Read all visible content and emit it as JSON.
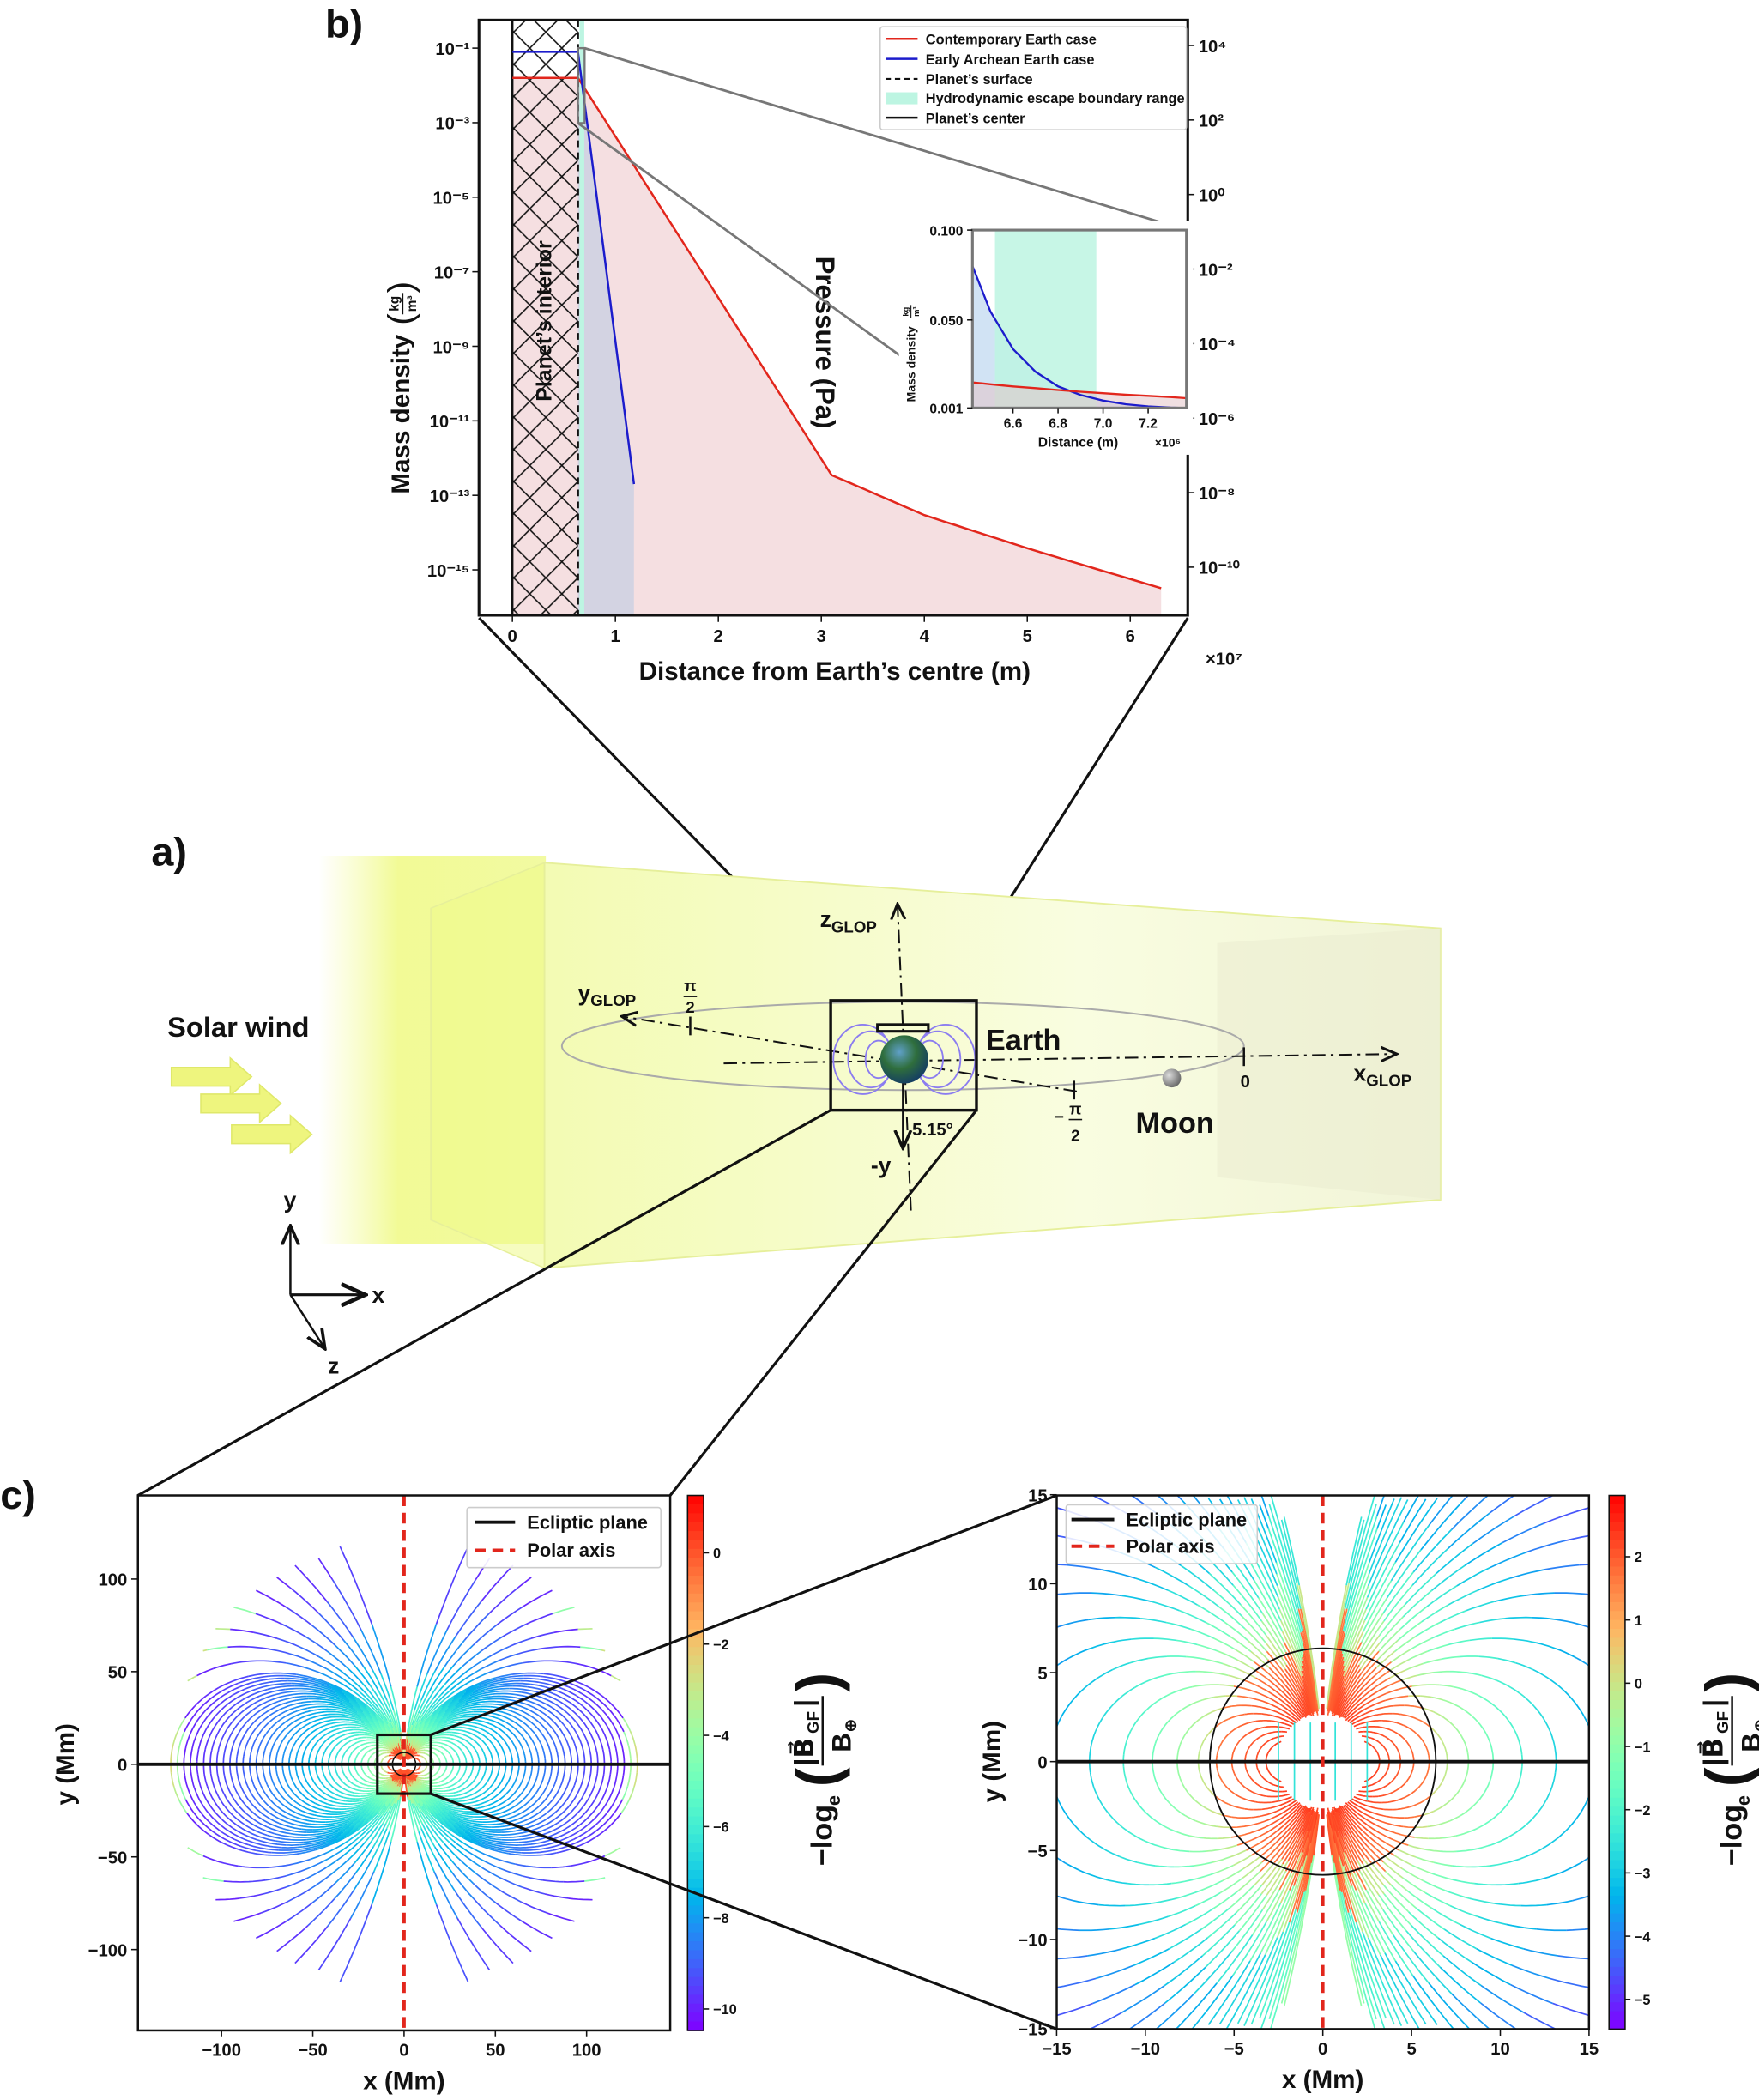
{
  "panel_labels": {
    "a": "a)",
    "b": "b)",
    "c": "c)"
  },
  "colors": {
    "contemporary": "#e2261c",
    "archean": "#1c1ccc",
    "hydro_band": "#bdf5e2",
    "red_fill": "#f5dfe1",
    "blue_fill": "#cfd2e2",
    "polar_axis": "#e2261c",
    "slab_yellow": "#eef98a"
  },
  "chart_data": [
    {
      "panel": "b",
      "type": "line",
      "xlabel": "Distance from Earth’s centre (m)",
      "x_multiplier": "×10⁷",
      "xlim": [
        -0.32,
        6.56
      ],
      "xticks": [
        0,
        1,
        2,
        3,
        4,
        5,
        6
      ],
      "xtick_labels": [
        "0",
        "1",
        "2",
        "3",
        "4",
        "5",
        "6"
      ],
      "ylabel": "Mass density",
      "ylabel_unit_num": "kg",
      "ylabel_unit_den": "m³",
      "yscale": "log",
      "ylim": [
        5.6e-17,
        0.56
      ],
      "yticks": [
        0.1,
        0.001,
        1e-05,
        1e-07,
        1e-09,
        1e-11,
        1e-13,
        1e-15
      ],
      "ytick_labels": [
        "10⁻¹",
        "10⁻³",
        "10⁻⁵",
        "10⁻⁷",
        "10⁻⁹",
        "10⁻¹¹",
        "10⁻¹³",
        "10⁻¹⁵"
      ],
      "y2label": "Pressure (Pa)",
      "y2scale": "log",
      "y2ticks": [
        10000.0,
        100.0,
        1,
        0.01,
        0.0001,
        1e-06,
        1e-08,
        1e-10
      ],
      "y2tick_labels": [
        "10⁴",
        "10²",
        "10⁰",
        "10⁻²",
        "10⁻⁴",
        "10⁻⁶",
        "10⁻⁸",
        "10⁻¹⁰"
      ],
      "series": [
        {
          "name": "Contemporary Earth case",
          "color": "#e2261c",
          "x": [
            0,
            0.637,
            3.1,
            4.0,
            5.0,
            6.3
          ],
          "y": [
            0.016,
            0.016,
            3.5e-13,
            2.95e-14,
            3.8e-15,
            3.2e-16
          ]
        },
        {
          "name": "Early Archean Earth case",
          "color": "#1c1ccc",
          "x": [
            0,
            0.637,
            1.18
          ],
          "y": [
            0.08,
            0.08,
            2e-13
          ]
        }
      ],
      "planet_surface_x": 0.637,
      "planet_center_x": 0,
      "hydrodynamic_band_x": [
        0.652,
        0.698
      ],
      "legend": [
        "Contemporary Earth case",
        "Early Archean Earth case",
        "Planet’s surface",
        "Hydrodynamic escape boundary range",
        "Planet’s center"
      ],
      "legend_position": "top-right",
      "annotation": "Planet’s interior"
    },
    {
      "panel": "b-inset",
      "type": "line",
      "xlabel": "Distance (m)",
      "x_multiplier": "×10⁶",
      "xlim": [
        6.42,
        7.37
      ],
      "xticks": [
        6.6,
        6.8,
        7.0,
        7.2
      ],
      "xtick_labels": [
        "6.6",
        "6.8",
        "7.0",
        "7.2"
      ],
      "ylabel": "Mass density",
      "ylabel_unit_num": "kg",
      "ylabel_unit_den": "m³",
      "ylim": [
        0.001,
        0.1
      ],
      "yticks": [
        0.001,
        0.05,
        0.1
      ],
      "ytick_labels": [
        "0.001",
        "0.050",
        "0.100"
      ],
      "hydrodynamic_band_x": [
        6.52,
        6.97
      ],
      "series": [
        {
          "name": "Early Archean Earth case",
          "color": "#1c1ccc",
          "x": [
            6.42,
            6.5,
            6.6,
            6.7,
            6.8,
            6.9,
            7.0,
            7.1,
            7.2,
            7.3,
            7.37
          ],
          "y": [
            0.08,
            0.0546,
            0.0338,
            0.0211,
            0.013,
            0.0082,
            0.0051,
            0.0031,
            0.0019,
            0.0012,
            0.001
          ]
        },
        {
          "name": "Contemporary Earth case",
          "color": "#e2261c",
          "x": [
            6.42,
            6.5,
            6.6,
            6.7,
            6.8,
            6.9,
            7.0,
            7.1,
            7.2,
            7.3,
            7.37
          ],
          "y": [
            0.0152,
            0.0142,
            0.013,
            0.012,
            0.011,
            0.01,
            0.0092,
            0.0084,
            0.0077,
            0.007,
            0.0064
          ]
        }
      ]
    },
    {
      "panel": "c-left",
      "type": "streamplot",
      "xlabel": "x (Mm)",
      "ylabel": "y (Mm)",
      "xlim": [
        -145.8,
        145.8
      ],
      "ylim": [
        -143.7,
        145
      ],
      "xticks": [
        -100,
        -50,
        0,
        50,
        100
      ],
      "xtick_labels": [
        "−100",
        "−50",
        "0",
        "50",
        "100"
      ],
      "yticks": [
        100,
        50,
        0,
        -50,
        -100
      ],
      "ytick_labels": [
        "100",
        "50",
        "0",
        "−50",
        "−100"
      ],
      "colorbar": {
        "range": [
          -10.47,
          1.26
        ],
        "ticks": [
          0,
          -2,
          -4,
          -6,
          -8,
          -10
        ],
        "tick_labels": [
          "0",
          "−2",
          "−4",
          "−6",
          "−8",
          "−10"
        ],
        "colormap": "rainbow"
      },
      "legend": [
        "Ecliptic plane",
        "Polar axis"
      ],
      "legend_position": "top-right",
      "earth_radius_Mm": 6.37,
      "zoom_box_Mm": [
        -15,
        15
      ]
    },
    {
      "panel": "c-right",
      "type": "streamplot",
      "xlabel": "x (Mm)",
      "ylabel": "y (Mm)",
      "xlim": [
        -15,
        15
      ],
      "ylim": [
        -15,
        15
      ],
      "xticks": [
        -15,
        -10,
        -5,
        0,
        5,
        10,
        15
      ],
      "xtick_labels": [
        "−15",
        "−10",
        "−5",
        "0",
        "5",
        "10",
        "15"
      ],
      "yticks": [
        15,
        10,
        5,
        0,
        -5,
        -10,
        -15
      ],
      "ytick_labels": [
        "15",
        "10",
        "5",
        "0",
        "−5",
        "−10",
        "−15"
      ],
      "colorbar": {
        "range": [
          -5.47,
          2.97
        ],
        "ticks": [
          2,
          1,
          0,
          -1,
          -2,
          -3,
          -4,
          -5
        ],
        "tick_labels": [
          "2",
          "1",
          "0",
          "−1",
          "−2",
          "−3",
          "−4",
          "−5"
        ],
        "colormap": "rainbow"
      },
      "legend": [
        "Ecliptic plane",
        "Polar axis"
      ],
      "legend_position": "top-left",
      "earth_radius_Mm": 6.37
    }
  ],
  "colorbar_label": {
    "prefix": "−log",
    "sub": "e",
    "num": "|B⃗",
    "num_sub": "GF",
    "num_end": "|",
    "den": "B",
    "den_sub": "⊕"
  },
  "diagram": {
    "solar_wind": "Solar wind",
    "earth": "Earth",
    "moon": "Moon",
    "z_glop": "z",
    "z_glop_sub": "GLOP",
    "y_glop": "y",
    "y_glop_sub": "GLOP",
    "x_glop": "x",
    "x_glop_sub": "GLOP",
    "pi": "π",
    "two": "2",
    "minus": "−",
    "zero": "0",
    "inclination": "5.15°",
    "neg_y": "-y",
    "triad_x": "x",
    "triad_y": "y",
    "triad_z": "z"
  }
}
